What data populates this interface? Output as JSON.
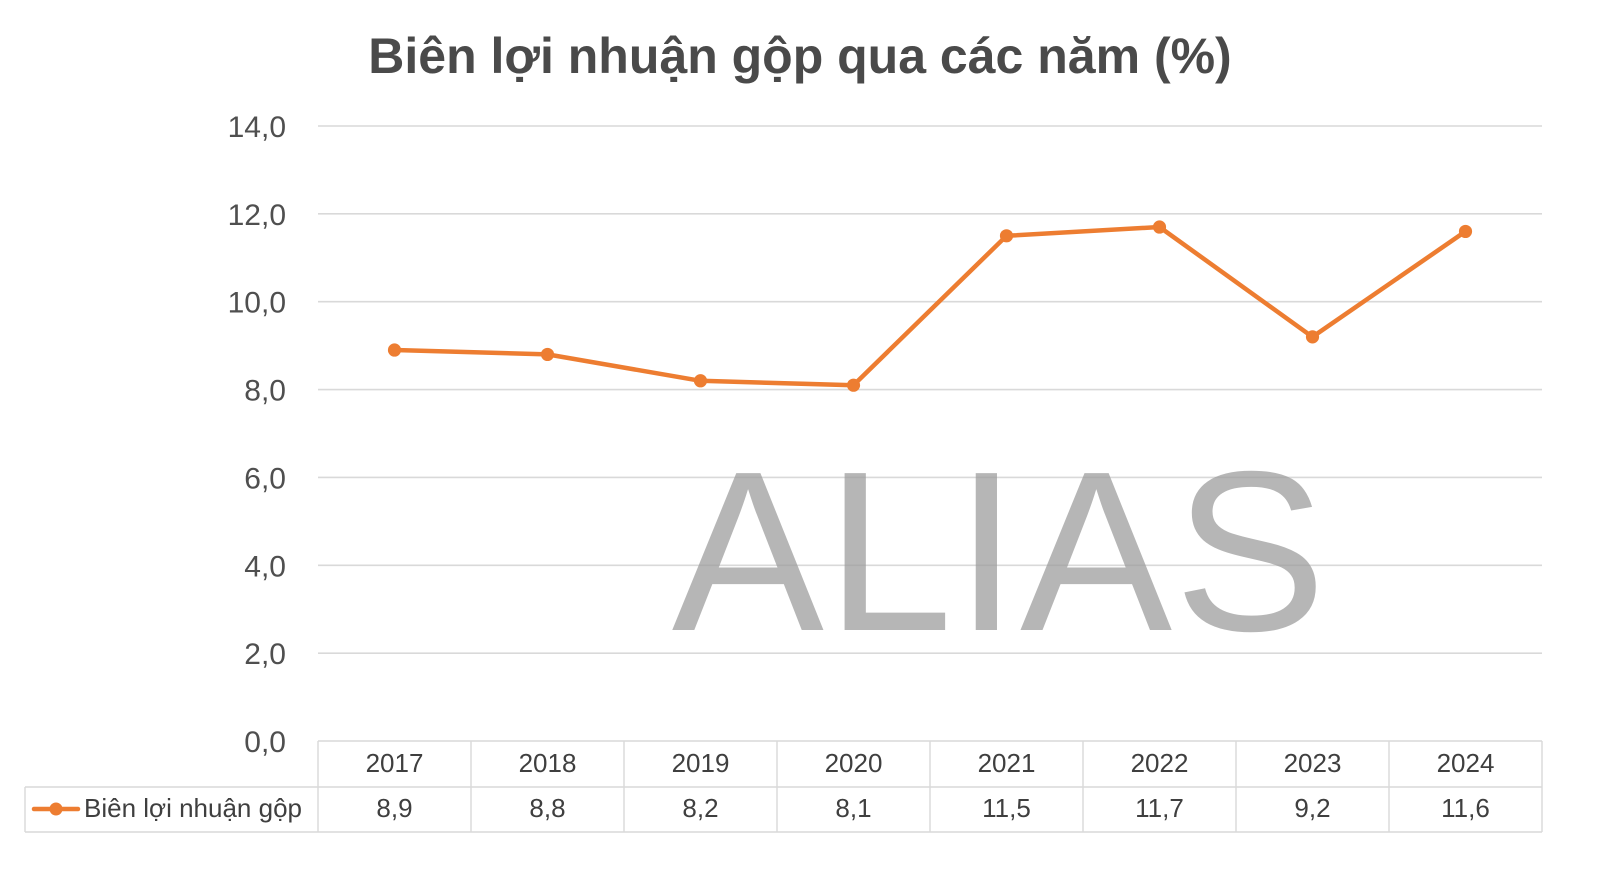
{
  "page": {
    "watermark": "ALIAS"
  },
  "chart_data": {
    "type": "line",
    "title": "Biên lợi nhuận gộp qua các năm (%)",
    "categories": [
      "2017",
      "2018",
      "2019",
      "2020",
      "2021",
      "2022",
      "2023",
      "2024"
    ],
    "series": [
      {
        "name": "Biên lợi nhuận gộp",
        "values": [
          8.9,
          8.8,
          8.2,
          8.1,
          11.5,
          11.7,
          9.2,
          11.6
        ],
        "value_labels": [
          "8,9",
          "8,8",
          "8,2",
          "8,1",
          "11,5",
          "11,7",
          "9,2",
          "11,6"
        ],
        "color": "#ED7D31"
      }
    ],
    "ylim": [
      0,
      14
    ],
    "yticks": [
      0,
      2,
      4,
      6,
      8,
      10,
      12,
      14
    ],
    "ytick_labels": [
      "0,0",
      "2,0",
      "4,0",
      "6,0",
      "8,0",
      "10,0",
      "12,0",
      "14,0"
    ],
    "grid": true,
    "legend_position": "bottom",
    "data_table": true
  }
}
